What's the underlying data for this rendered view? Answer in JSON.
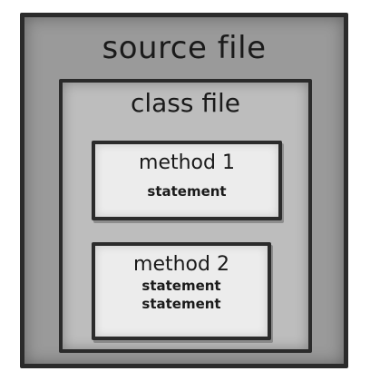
{
  "source_file": {
    "title": "source file"
  },
  "class_file": {
    "title": "class file"
  },
  "methods": [
    {
      "title": "method 1",
      "statements": [
        "statement"
      ]
    },
    {
      "title": "method 2",
      "statements": [
        "statement",
        "statement"
      ]
    }
  ]
}
